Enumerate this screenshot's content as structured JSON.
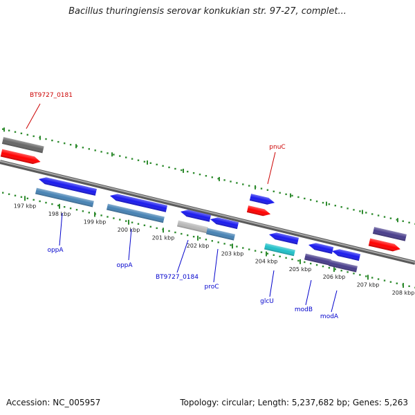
{
  "title": "Bacillus thuringiensis serovar konkukian str. 97-27, complet...",
  "footer": {
    "accession": "Accession: NC_005957",
    "topology": "Topology: circular; Length: 5,237,682 bp; Genes: 5,263"
  },
  "colors": {
    "backbone": "#808080",
    "tick": "#2e8b2e",
    "label_forward": "#cc0000",
    "label_reverse": "#0000cc"
  },
  "ticks": [
    "197 kbp",
    "198 kbp",
    "199 kbp",
    "200 kbp",
    "201 kbp",
    "202 kbp",
    "203 kbp",
    "204 kbp",
    "205 kbp",
    "206 kbp",
    "207 kbp",
    "208 kbp"
  ],
  "labels": [
    {
      "text": "BT9727_0181",
      "strand": "forward"
    },
    {
      "text": "pnuC",
      "strand": "forward"
    },
    {
      "text": "oppA",
      "strand": "reverse"
    },
    {
      "text": "oppA",
      "strand": "reverse"
    },
    {
      "text": "BT9727_0184",
      "strand": "reverse"
    },
    {
      "text": "proC",
      "strand": "reverse"
    },
    {
      "text": "glcU",
      "strand": "reverse"
    },
    {
      "text": "modB",
      "strand": "reverse"
    },
    {
      "text": "modA",
      "strand": "reverse"
    }
  ],
  "features": [
    {
      "name": "BT9727_0181",
      "strand": "forward",
      "color": "#666666"
    },
    {
      "name": "BT9727_0181",
      "strand": "forward",
      "color": "#ff0000"
    },
    {
      "name": "oppA",
      "strand": "reverse",
      "color": "#1a1aee"
    },
    {
      "name": "oppA",
      "strand": "reverse",
      "color": "#4682b4"
    },
    {
      "name": "oppA",
      "strand": "reverse",
      "color": "#1a1aee"
    },
    {
      "name": "oppA",
      "strand": "reverse",
      "color": "#4682b4"
    },
    {
      "name": "BT9727_0184",
      "strand": "reverse",
      "color": "#1a1aee"
    },
    {
      "name": "BT9727_0184",
      "strand": "reverse",
      "color": "#b8b8b8"
    },
    {
      "name": "proC",
      "strand": "reverse",
      "color": "#1a1aee"
    },
    {
      "name": "proC",
      "strand": "reverse",
      "color": "#4682b4"
    },
    {
      "name": "pnuC",
      "strand": "forward",
      "color": "#1a1aee"
    },
    {
      "name": "pnuC",
      "strand": "forward",
      "color": "#ff0000"
    },
    {
      "name": "glcU",
      "strand": "reverse",
      "color": "#1a1aee"
    },
    {
      "name": "glcU",
      "strand": "reverse",
      "color": "#20c0c8"
    },
    {
      "name": "modB",
      "strand": "reverse",
      "color": "#1a1aee"
    },
    {
      "name": "modB",
      "strand": "reverse",
      "color": "#483d8b"
    },
    {
      "name": "modA",
      "strand": "reverse",
      "color": "#1a1aee"
    },
    {
      "name": "modA",
      "strand": "reverse",
      "color": "#483d8b"
    },
    {
      "name": "",
      "strand": "forward",
      "color": "#483d8b"
    },
    {
      "name": "",
      "strand": "forward",
      "color": "#ff0000"
    }
  ]
}
